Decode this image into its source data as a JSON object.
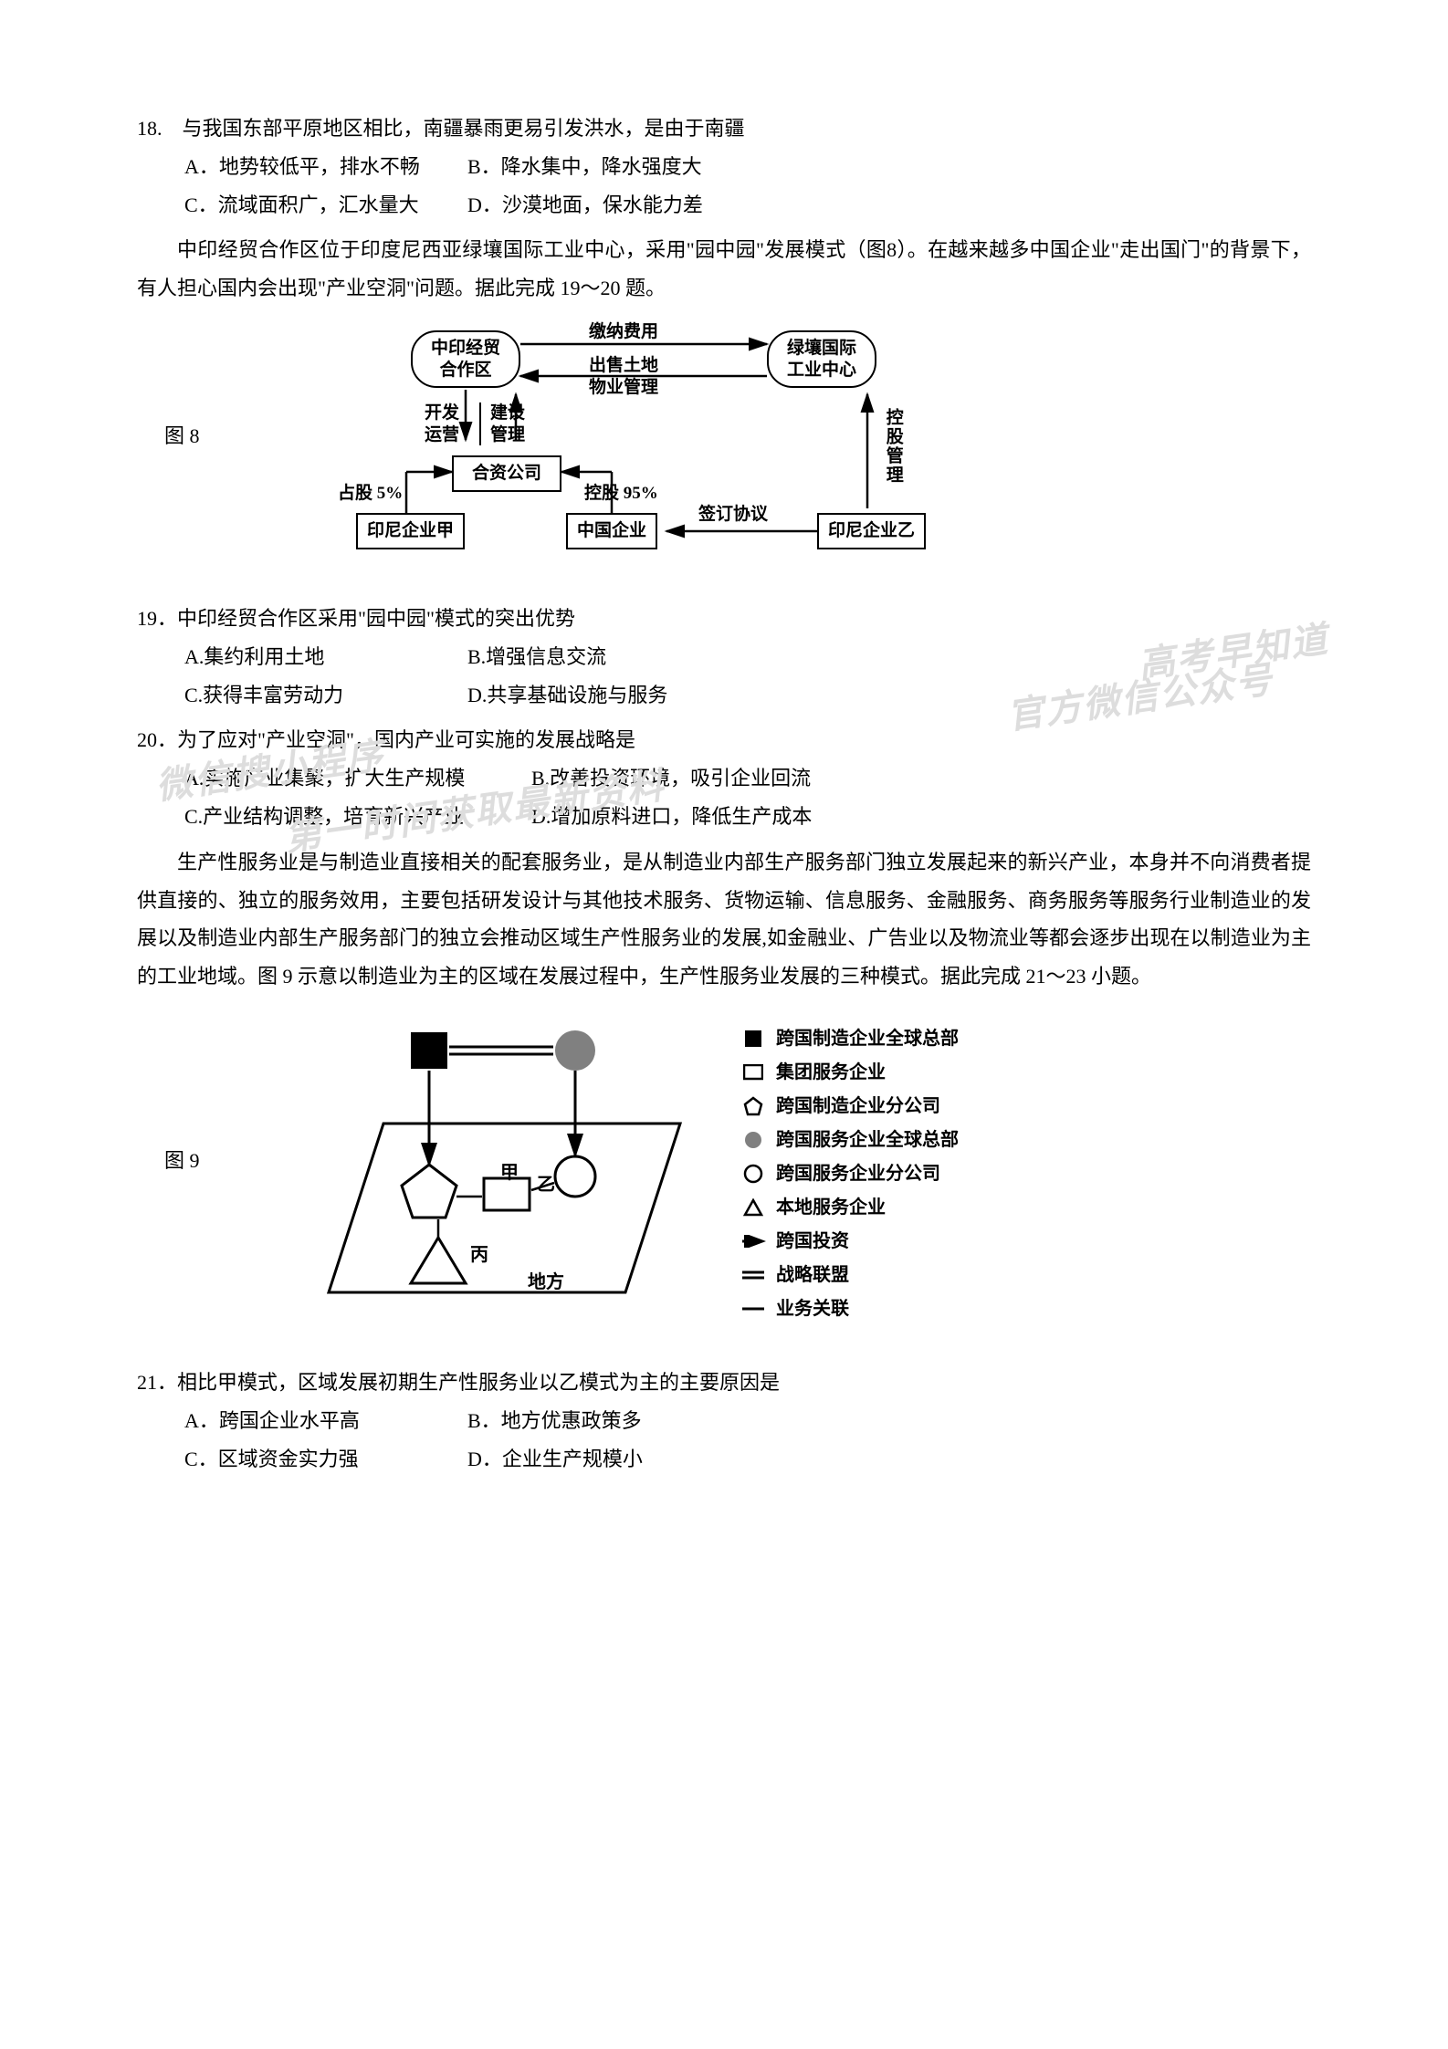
{
  "q18": {
    "stem": "18.　与我国东部平原地区相比，南疆暴雨更易引发洪水，是由于南疆",
    "A": "A．地势较低平，排水不畅",
    "B": "B．降水集中，降水强度大",
    "C": "C．流域面积广，汇水量大",
    "D": "D．沙漠地面，保水能力差"
  },
  "passage1": "中印经贸合作区位于印度尼西亚绿壤国际工业中心，采用\"园中园\"发展模式（图8）。在越来越多中国企业\"走出国门\"的背景下，有人担心国内会出现\"产业空洞\"问题。据此完成 19～20 题。",
  "fig8_label": "图 8",
  "fig8": {
    "node_a": "中印经贸\n合作区",
    "node_b": "绿壤国际\n工业中心",
    "edge_top": "缴纳费用",
    "edge_mid": "出售土地\n物业管理",
    "left_col": "开发\n运营",
    "left_col2": "建设\n管理",
    "joint": "合资公司",
    "share": "占股 5%",
    "hold95": "控股 95%",
    "enterprise_a": "印尼企业甲",
    "cn_enterprise": "中国企业",
    "sign": "签订协议",
    "enterprise_b": "印尼企业乙",
    "right_v": "控股管理"
  },
  "q19": {
    "stem": "19．中印经贸合作区采用\"园中园\"模式的突出优势",
    "A": "A.集约利用土地",
    "B": "B.增强信息交流",
    "C": "C.获得丰富劳动力",
    "D": "D.共享基础设施与服务"
  },
  "q20": {
    "stem": "20．为了应对\"产业空洞\"，国内产业可实施的发展战略是",
    "A": "A.实施产业集聚，扩大生产规模",
    "B": "B.改善投资环境，吸引企业回流",
    "C": "C.产业结构调整，培育新兴产业",
    "D": "D.增加原料进口，降低生产成本"
  },
  "passage2": "生产性服务业是与制造业直接相关的配套服务业，是从制造业内部生产服务部门独立发展起来的新兴产业，本身并不向消费者提供直接的、独立的服务效用，主要包括研发设计与其他技术服务、货物运输、信息服务、金融服务、商务服务等服务行业制造业的发展以及制造业内部生产服务部门的独立会推动区域生产性服务业的发展,如金融业、广告业以及物流业等都会逐步出现在以制造业为主的工业地域。图 9 示意以制造业为主的区域在发展过程中，生产性服务业发展的三种模式。据此完成 21～23 小题。",
  "fig9_label": "图 9",
  "fig9": {
    "jia": "甲",
    "yi": "乙",
    "bing": "丙",
    "difang": "地方"
  },
  "legend9": [
    "跨国制造企业全球总部",
    "集团服务企业",
    "跨国制造企业分公司",
    "跨国服务企业全球总部",
    "跨国服务企业分公司",
    "本地服务企业",
    "跨国投资",
    "战略联盟",
    "业务关联"
  ],
  "q21": {
    "stem": "21．相比甲模式，区域发展初期生产性服务业以乙模式为主的主要原因是",
    "A": "A．跨国企业水平高",
    "B": "B．地方优惠政策多",
    "C": "C．区域资金实力强",
    "D": "D．企业生产规模小"
  },
  "watermarks": {
    "w1": "高考早知道",
    "w2": "官方微信公众号",
    "w3": "微信搜小程序",
    "w4": "第一时间获取最新资料"
  }
}
